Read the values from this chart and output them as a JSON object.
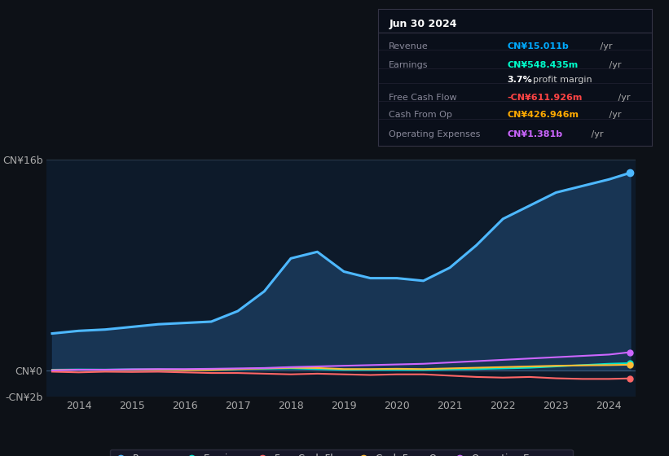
{
  "background_color": "#0d1117",
  "plot_bg_color": "#0d1a2a",
  "title_box": {
    "date": "Jun 30 2024",
    "rows": [
      {
        "label": "Revenue",
        "value": "CN¥15.011b",
        "value_color": "#00aaff"
      },
      {
        "label": "Earnings",
        "value": "CN¥548.435m",
        "value_color": "#00ffcc"
      },
      {
        "label": "",
        "value": "3.7% profit margin",
        "value_color": "#ffffff"
      },
      {
        "label": "Free Cash Flow",
        "value": "-CN¥611.926m",
        "value_color": "#ff4444"
      },
      {
        "label": "Cash From Op",
        "value": "CN¥426.946m",
        "value_color": "#ffaa00"
      },
      {
        "label": "Operating Expenses",
        "value": "CN¥1.381b",
        "value_color": "#cc66ff"
      }
    ]
  },
  "years": [
    2013.5,
    2014,
    2014.5,
    2015,
    2015.5,
    2016,
    2016.5,
    2017,
    2017.5,
    2018,
    2018.5,
    2019,
    2019.5,
    2020,
    2020.5,
    2021,
    2021.5,
    2022,
    2022.5,
    2023,
    2023.5,
    2024,
    2024.4
  ],
  "revenue": [
    2.8,
    3.0,
    3.1,
    3.3,
    3.5,
    3.6,
    3.7,
    4.5,
    6.0,
    8.5,
    9.0,
    7.5,
    7.0,
    7.0,
    6.8,
    7.8,
    9.5,
    11.5,
    12.5,
    13.5,
    14.0,
    14.5,
    15.0
  ],
  "earnings": [
    0.05,
    0.07,
    0.06,
    0.08,
    0.07,
    0.05,
    0.06,
    0.1,
    0.12,
    0.15,
    0.1,
    0.05,
    0.05,
    0.05,
    0.04,
    0.08,
    0.1,
    0.15,
    0.2,
    0.3,
    0.4,
    0.5,
    0.55
  ],
  "free_cash": [
    -0.1,
    -0.15,
    -0.1,
    -0.12,
    -0.1,
    -0.15,
    -0.2,
    -0.2,
    -0.25,
    -0.3,
    -0.25,
    -0.3,
    -0.35,
    -0.3,
    -0.3,
    -0.4,
    -0.5,
    -0.55,
    -0.5,
    -0.6,
    -0.65,
    -0.65,
    -0.61
  ],
  "cash_from_op": [
    0.02,
    0.05,
    0.04,
    0.05,
    0.06,
    0.02,
    0.03,
    0.1,
    0.15,
    0.2,
    0.18,
    0.1,
    0.1,
    0.12,
    0.1,
    0.15,
    0.2,
    0.25,
    0.3,
    0.35,
    0.38,
    0.4,
    0.43
  ],
  "op_expenses": [
    0.0,
    0.05,
    0.05,
    0.08,
    0.1,
    0.1,
    0.12,
    0.15,
    0.18,
    0.25,
    0.3,
    0.35,
    0.4,
    0.45,
    0.5,
    0.6,
    0.7,
    0.8,
    0.9,
    1.0,
    1.1,
    1.2,
    1.38
  ],
  "revenue_color": "#4db8ff",
  "earnings_color": "#00e5cc",
  "free_cash_color": "#ff6666",
  "cash_from_op_color": "#ffbb33",
  "op_expenses_color": "#cc66ff",
  "fill_color": "#1a3a5c",
  "ylim": [
    -2,
    16
  ],
  "yticks": [
    -2,
    0,
    16
  ],
  "ytick_labels": [
    "-CN¥2b",
    "CN¥0",
    "CN¥16b"
  ],
  "xticks": [
    2014,
    2015,
    2016,
    2017,
    2018,
    2019,
    2020,
    2021,
    2022,
    2023,
    2024
  ],
  "legend": [
    {
      "label": "Revenue",
      "color": "#4db8ff"
    },
    {
      "label": "Earnings",
      "color": "#00e5cc"
    },
    {
      "label": "Free Cash Flow",
      "color": "#ff6666"
    },
    {
      "label": "Cash From Op",
      "color": "#ffbb33"
    },
    {
      "label": "Operating Expenses",
      "color": "#cc66ff"
    }
  ]
}
